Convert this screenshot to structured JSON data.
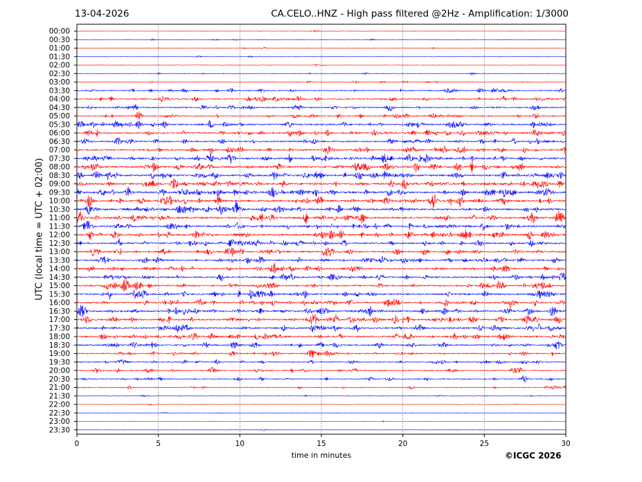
{
  "header": {
    "date": "13-04-2026",
    "title": "CA.CELO..HNZ - High pass filtered @2Hz - Amplification: 1/3000"
  },
  "chart_data": {
    "type": "line",
    "title": "CA.CELO..HNZ - High pass filtered @2Hz - Amplification: 1/3000",
    "xlabel": "time in minutes",
    "ylabel": "UTC (local time = UTC + 02:00)",
    "xlim": [
      0,
      30
    ],
    "x_ticks": [
      0,
      5,
      10,
      15,
      20,
      25,
      30
    ],
    "grid": "vertical dotted lines at 5-minute intervals",
    "trace_labels": [
      "00:00",
      "00:30",
      "01:00",
      "01:30",
      "02:00",
      "02:30",
      "03:00",
      "03:30",
      "04:00",
      "04:30",
      "05:00",
      "05:30",
      "06:00",
      "06:30",
      "07:00",
      "07:30",
      "08:00",
      "08:30",
      "09:00",
      "09:30",
      "10:00",
      "10:30",
      "11:00",
      "11:30",
      "12:00",
      "12:30",
      "13:00",
      "13:30",
      "14:00",
      "14:30",
      "15:00",
      "15:30",
      "16:00",
      "16:30",
      "17:00",
      "17:30",
      "18:00",
      "18:30",
      "19:00",
      "19:30",
      "20:00",
      "20:30",
      "21:00",
      "21:30",
      "22:00",
      "22:30",
      "23:00",
      "23:30"
    ],
    "trace_colors": [
      "#ff0000",
      "#0000ff"
    ],
    "activity": [
      0.02,
      0.06,
      0.05,
      0.04,
      0.04,
      0.08,
      0.12,
      0.35,
      0.45,
      0.4,
      0.4,
      0.6,
      0.55,
      0.5,
      0.6,
      0.65,
      0.7,
      0.7,
      0.75,
      0.7,
      0.75,
      0.7,
      0.7,
      0.65,
      0.7,
      0.6,
      0.6,
      0.55,
      0.55,
      0.55,
      0.6,
      0.6,
      0.6,
      0.65,
      0.7,
      0.6,
      0.6,
      0.5,
      0.4,
      0.35,
      0.35,
      0.3,
      0.2,
      0.06,
      0.03,
      0.03,
      0.02,
      0.02
    ]
  },
  "footer": {
    "copyright": "©ICGC 2026"
  }
}
